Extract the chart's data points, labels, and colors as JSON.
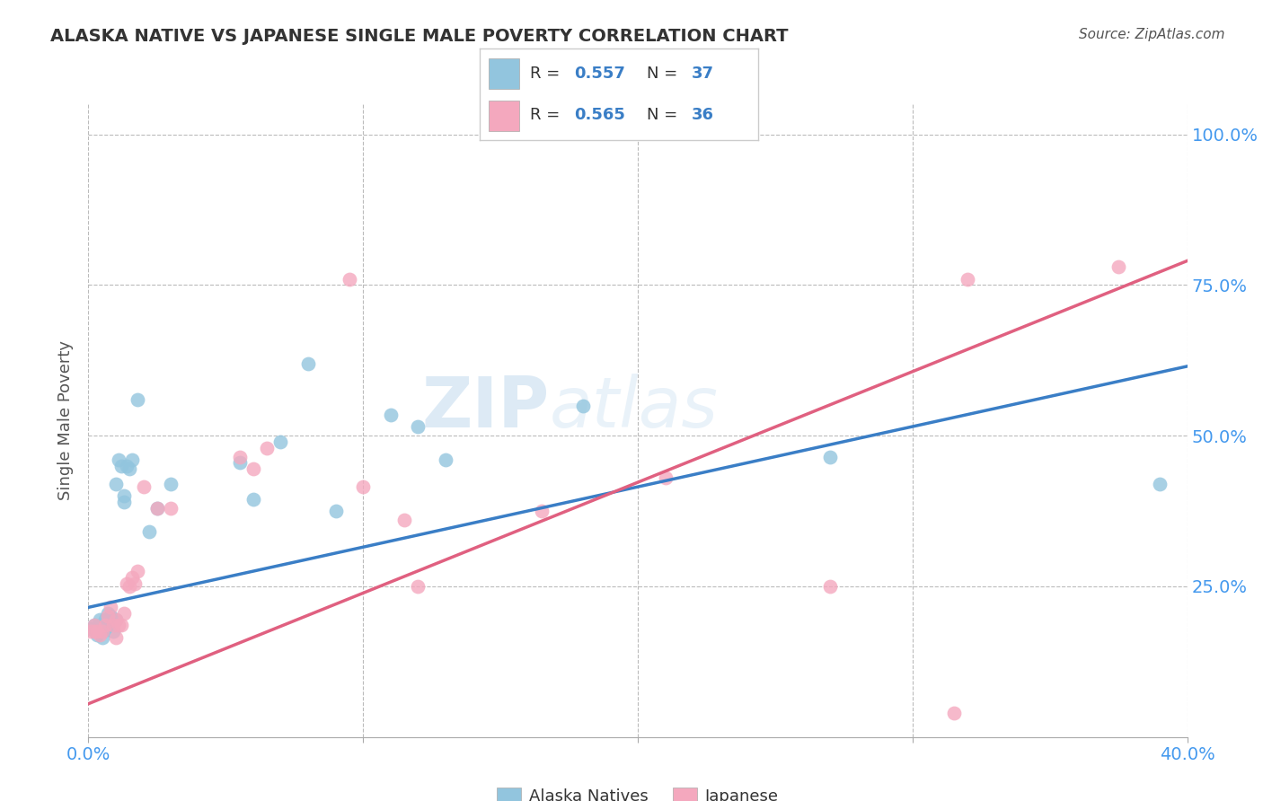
{
  "title": "ALASKA NATIVE VS JAPANESE SINGLE MALE POVERTY CORRELATION CHART",
  "source": "Source: ZipAtlas.com",
  "ylabel": "Single Male Poverty",
  "xlim": [
    0.0,
    0.4
  ],
  "ylim": [
    0.0,
    1.05
  ],
  "xtick_vals": [
    0.0,
    0.1,
    0.2,
    0.3,
    0.4
  ],
  "xtick_labels_show": [
    "0.0%",
    "",
    "",
    "",
    "40.0%"
  ],
  "ytick_vals": [
    0.25,
    0.5,
    0.75,
    1.0
  ],
  "ytick_labels": [
    "25.0%",
    "50.0%",
    "75.0%",
    "100.0%"
  ],
  "color_blue": "#92C5DE",
  "color_pink": "#F4A8BE",
  "line_blue": "#3A7EC6",
  "line_pink": "#E06080",
  "watermark_zip": "ZIP",
  "watermark_atlas": "atlas",
  "legend_r1": "R = 0.557",
  "legend_n1": "N = 37",
  "legend_r2": "R = 0.565",
  "legend_n2": "N = 36",
  "alaska_x": [
    0.001,
    0.002,
    0.003,
    0.004,
    0.004,
    0.005,
    0.005,
    0.006,
    0.006,
    0.007,
    0.007,
    0.008,
    0.009,
    0.01,
    0.01,
    0.011,
    0.012,
    0.013,
    0.013,
    0.014,
    0.015,
    0.016,
    0.018,
    0.022,
    0.025,
    0.03,
    0.055,
    0.06,
    0.07,
    0.08,
    0.09,
    0.11,
    0.12,
    0.13,
    0.18,
    0.27,
    0.39
  ],
  "alaska_y": [
    0.18,
    0.185,
    0.17,
    0.175,
    0.195,
    0.175,
    0.165,
    0.18,
    0.195,
    0.185,
    0.205,
    0.2,
    0.175,
    0.195,
    0.42,
    0.46,
    0.45,
    0.39,
    0.4,
    0.45,
    0.445,
    0.46,
    0.56,
    0.34,
    0.38,
    0.42,
    0.455,
    0.395,
    0.49,
    0.62,
    0.375,
    0.535,
    0.515,
    0.46,
    0.55,
    0.465,
    0.42
  ],
  "japanese_x": [
    0.001,
    0.002,
    0.002,
    0.003,
    0.004,
    0.005,
    0.006,
    0.007,
    0.008,
    0.009,
    0.01,
    0.01,
    0.011,
    0.012,
    0.013,
    0.014,
    0.015,
    0.016,
    0.017,
    0.018,
    0.02,
    0.025,
    0.03,
    0.055,
    0.06,
    0.065,
    0.095,
    0.1,
    0.115,
    0.12,
    0.165,
    0.21,
    0.27,
    0.315,
    0.32,
    0.375
  ],
  "japanese_y": [
    0.175,
    0.175,
    0.185,
    0.175,
    0.17,
    0.175,
    0.185,
    0.2,
    0.215,
    0.185,
    0.165,
    0.195,
    0.185,
    0.185,
    0.205,
    0.255,
    0.25,
    0.265,
    0.255,
    0.275,
    0.415,
    0.38,
    0.38,
    0.465,
    0.445,
    0.48,
    0.76,
    0.415,
    0.36,
    0.25,
    0.375,
    0.43,
    0.25,
    0.04,
    0.76,
    0.78
  ],
  "alaska_line_y0": 0.215,
  "alaska_line_y1": 0.615,
  "japanese_line_y0": 0.055,
  "japanese_line_y1": 0.79
}
